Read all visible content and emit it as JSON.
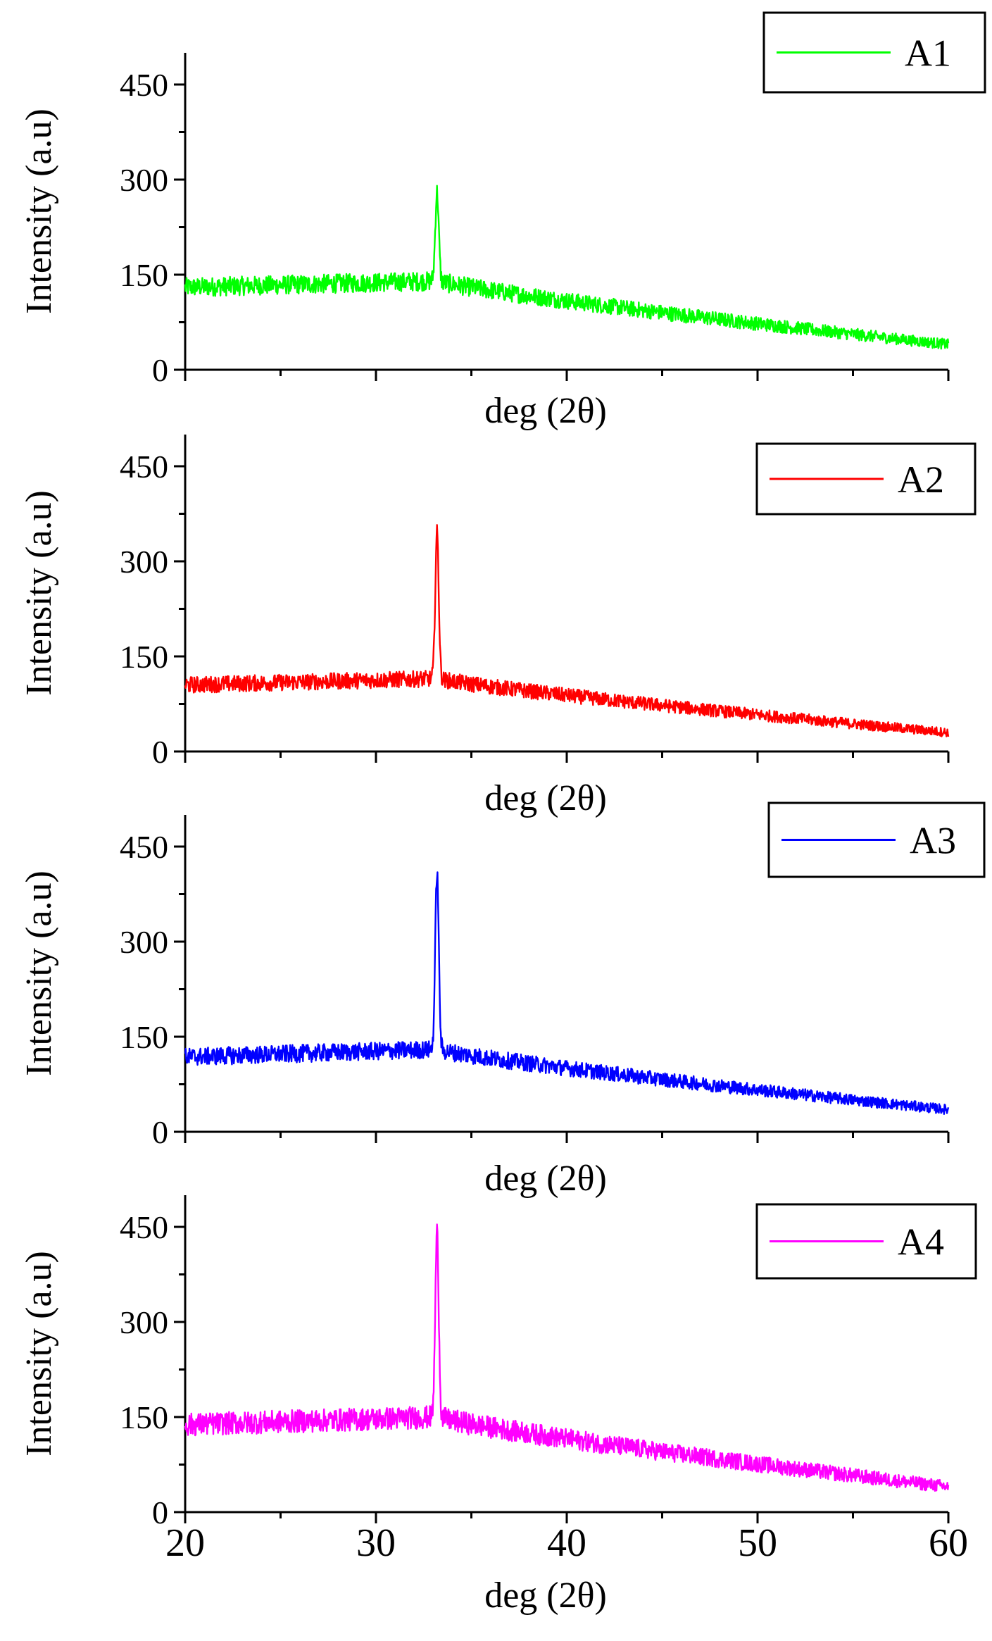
{
  "chart_data": [
    {
      "type": "line",
      "series": [
        {
          "name": "A1",
          "color": "#00ff00",
          "baseline_start": 130,
          "baseline_at_peak": 140,
          "baseline_end": 40,
          "noise": 30,
          "peak_x": 33.2,
          "peak_y": 280
        }
      ],
      "xlabel": "deg (2θ)",
      "ylabel": "Intensity (a.u)",
      "xlim": [
        20,
        60
      ],
      "ylim": [
        0,
        500
      ],
      "xticks": [
        20,
        30,
        40,
        50,
        60
      ],
      "yticks": [
        0,
        150,
        300,
        450
      ],
      "show_x_tick_labels": false,
      "legend_position": "top-right"
    },
    {
      "type": "line",
      "series": [
        {
          "name": "A2",
          "color": "#ff0000",
          "baseline_start": 105,
          "baseline_at_peak": 115,
          "baseline_end": 30,
          "noise": 26,
          "peak_x": 33.2,
          "peak_y": 345
        }
      ],
      "xlabel": "deg (2θ)",
      "ylabel": "Intensity (a.u)",
      "xlim": [
        20,
        60
      ],
      "ylim": [
        0,
        500
      ],
      "xticks": [
        20,
        30,
        40,
        50,
        60
      ],
      "yticks": [
        0,
        150,
        300,
        450
      ],
      "show_x_tick_labels": false,
      "legend_position": "top-right"
    },
    {
      "type": "line",
      "series": [
        {
          "name": "A3",
          "color": "#0000ff",
          "baseline_start": 118,
          "baseline_at_peak": 130,
          "baseline_end": 35,
          "noise": 28,
          "peak_x": 33.2,
          "peak_y": 410
        }
      ],
      "xlabel": "deg (2θ)",
      "ylabel": "Intensity (a.u)",
      "xlim": [
        20,
        60
      ],
      "ylim": [
        0,
        500
      ],
      "xticks": [
        20,
        30,
        40,
        50,
        60
      ],
      "yticks": [
        0,
        150,
        300,
        450
      ],
      "show_x_tick_labels": false,
      "legend_position": "top-right"
    },
    {
      "type": "line",
      "series": [
        {
          "name": "A4",
          "color": "#ff00ff",
          "baseline_start": 138,
          "baseline_at_peak": 150,
          "baseline_end": 40,
          "noise": 36,
          "peak_x": 33.2,
          "peak_y": 440
        }
      ],
      "xlabel": "deg (2θ)",
      "ylabel": "Intensity (a.u)",
      "xlim": [
        20,
        60
      ],
      "ylim": [
        0,
        500
      ],
      "xticks": [
        20,
        30,
        40,
        50,
        60
      ],
      "yticks": [
        0,
        150,
        300,
        450
      ],
      "show_x_tick_labels": true,
      "legend_position": "top-right"
    }
  ]
}
